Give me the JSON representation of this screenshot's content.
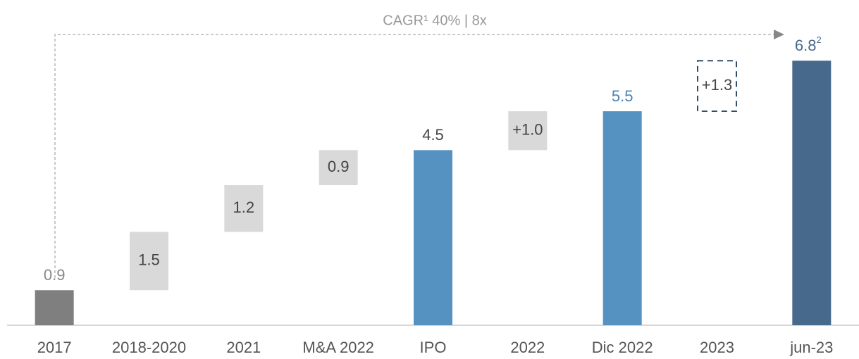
{
  "chart_data": {
    "type": "waterfall",
    "annotation": "CAGR¹ 40% | 8x",
    "categories": [
      "2017",
      "2018-2020",
      "2021",
      "M&A 2022",
      "IPO",
      "2022",
      "Dic 2022",
      "2023",
      "jun-23"
    ],
    "values": [
      0.9,
      1.5,
      1.2,
      0.9,
      4.5,
      1.0,
      5.5,
      1.3,
      6.8
    ],
    "value_labels": [
      "0.9",
      "1.5",
      "1.2",
      "0.9",
      "4.5",
      "+1.0",
      "5.5",
      "+1.3",
      "6.8"
    ],
    "value_label_notes": [
      null,
      null,
      null,
      null,
      null,
      null,
      null,
      null,
      "2"
    ],
    "kinds": [
      "start",
      "increase",
      "increase",
      "increase",
      "total",
      "increase",
      "total",
      "pending",
      "total"
    ],
    "colors": [
      "#7f7f7f",
      "#d9d9d9",
      "#d9d9d9",
      "#d9d9d9",
      "#5592c1",
      "#d9d9d9",
      "#5592c1",
      "#2f4f6f",
      "#476a8c"
    ],
    "label_colors": [
      "#888888",
      "#444444",
      "#444444",
      "#444444",
      "#444444",
      "#444444",
      "#4a84b8",
      "#444444",
      "#476a8c"
    ],
    "ylim": [
      0,
      7.6
    ]
  }
}
